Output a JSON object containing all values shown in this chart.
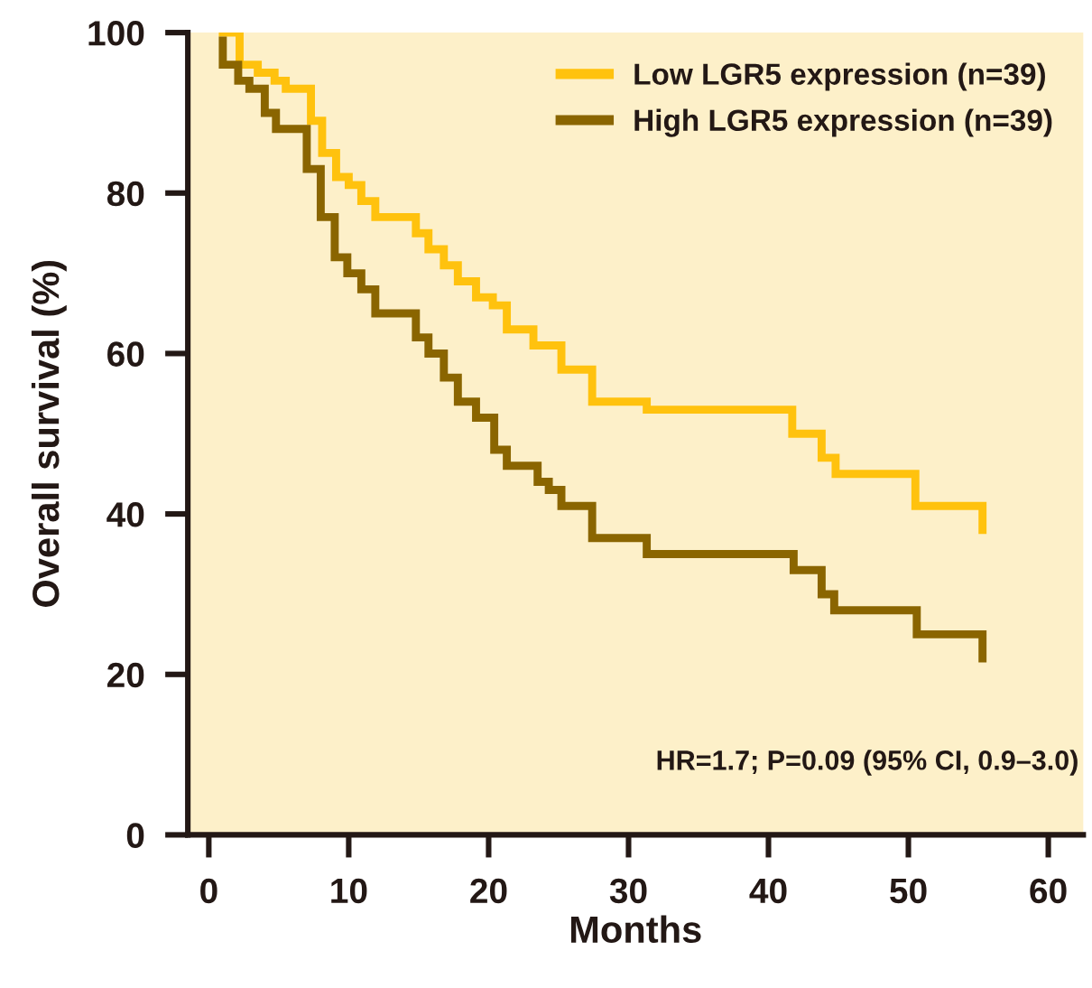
{
  "chart_data": {
    "type": "step",
    "xlabel": "Months",
    "ylabel": "Overall survival (%)",
    "xlim": [
      -1.5,
      62.5
    ],
    "ylim": [
      0,
      100
    ],
    "xticks": [
      0,
      10,
      20,
      30,
      40,
      50,
      60
    ],
    "yticks": [
      0,
      20,
      40,
      60,
      80,
      100
    ],
    "grid": false,
    "legend": "top right",
    "marker": "none",
    "line_style": "solid",
    "annotations": [
      "HR=1.7; P=0.09 (95% CI, 0.9–3.0)"
    ],
    "series": [
      {
        "name": "Low LGR5 expression (n=39)",
        "color": "#ffc20e",
        "x": [
          1.0,
          2.2,
          3.5,
          4.7,
          5.5,
          7.3,
          8.1,
          9.1,
          10.0,
          10.9,
          11.9,
          14.8,
          15.7,
          16.8,
          17.8,
          19.1,
          20.3,
          21.3,
          23.2,
          25.2,
          27.4,
          31.3,
          41.7,
          43.8,
          44.8,
          50.5,
          55.3
        ],
        "values": [
          100,
          96,
          95,
          94,
          93,
          89,
          85,
          82,
          81,
          79,
          77,
          75,
          73,
          71,
          69,
          67,
          66,
          63,
          61,
          58,
          54,
          53,
          50,
          47,
          45,
          41,
          38
        ]
      },
      {
        "name": "High LGR5 expression (n=39)",
        "color": "#8a6500",
        "x": [
          1.0,
          1.0,
          2.1,
          2.9,
          4.0,
          4.8,
          7.0,
          8.0,
          9.0,
          9.9,
          10.9,
          11.9,
          14.8,
          15.7,
          16.8,
          17.8,
          19.1,
          20.4,
          21.3,
          23.5,
          24.3,
          25.2,
          27.4,
          31.3,
          41.8,
          43.8,
          44.7,
          50.6,
          55.3
        ],
        "values": [
          99,
          96,
          94,
          93,
          90,
          88,
          83,
          77,
          72,
          70,
          68,
          65,
          62,
          60,
          57,
          54,
          52,
          48,
          46,
          44,
          43,
          41,
          37,
          35,
          33,
          30,
          28,
          25,
          22
        ]
      }
    ]
  }
}
